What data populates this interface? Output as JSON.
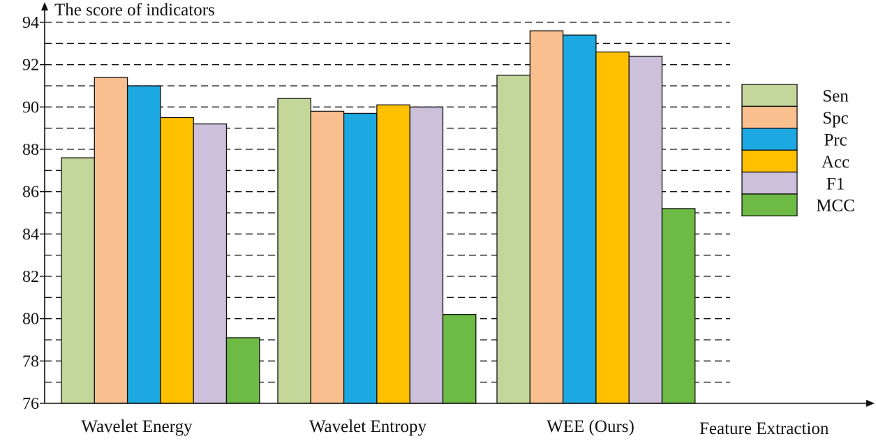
{
  "chart_data": {
    "type": "bar",
    "ylabel": "The score of indicators",
    "xlabel": "Feature Extraction",
    "ylim": [
      76,
      95
    ],
    "yticks": [
      76,
      78,
      80,
      82,
      84,
      86,
      88,
      90,
      92,
      94
    ],
    "grid": "dashed horizontal lines at every 1 unit from 77 to 94",
    "legend_position": "right",
    "categories": [
      "Wavelet Energy",
      "Wavelet Entropy",
      "WEE (Ours)"
    ],
    "series": [
      {
        "name": "Sen",
        "color": "#c4d79b",
        "values": [
          87.6,
          90.4,
          91.5
        ]
      },
      {
        "name": "Spc",
        "color": "#fabf8f",
        "values": [
          91.4,
          89.8,
          93.6
        ]
      },
      {
        "name": "Prc",
        "color": "#1ca8e1",
        "values": [
          91.0,
          89.7,
          93.4
        ]
      },
      {
        "name": "Acc",
        "color": "#ffc000",
        "values": [
          89.5,
          90.1,
          92.6
        ]
      },
      {
        "name": "F1",
        "color": "#ccc0da",
        "values": [
          89.2,
          90.0,
          92.4
        ]
      },
      {
        "name": "MCC",
        "color": "#6dbb45",
        "values": [
          79.1,
          80.2,
          85.2
        ]
      }
    ]
  }
}
